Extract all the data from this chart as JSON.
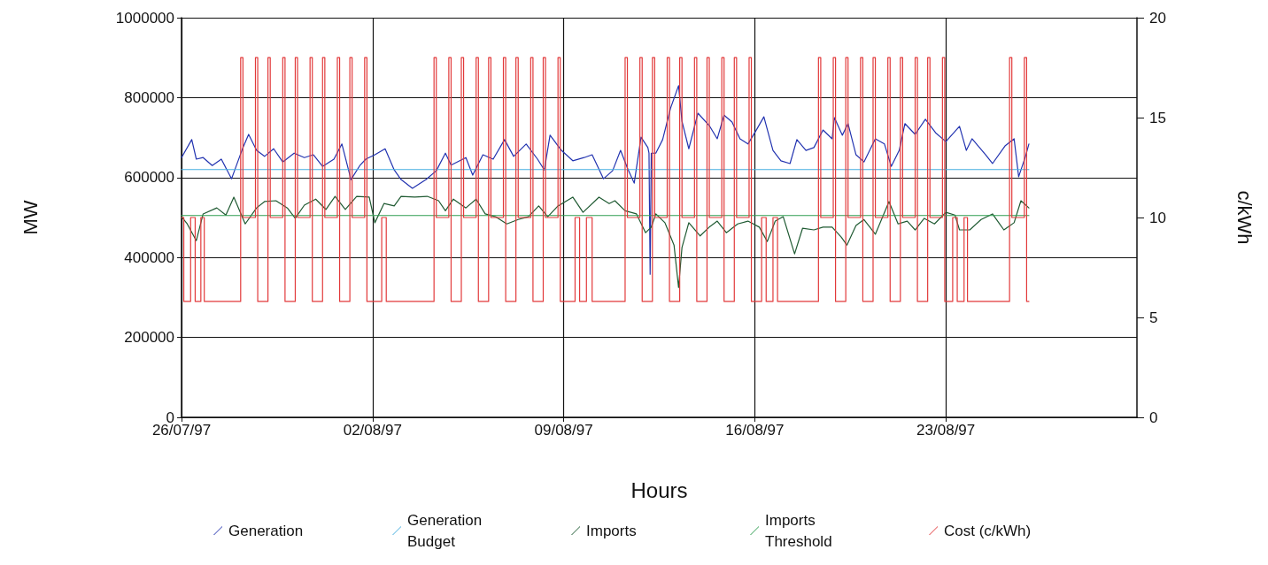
{
  "chart_data": {
    "type": "line",
    "xlabel": "Hours",
    "ylabel": "MW",
    "y2label": "c/kWh",
    "xlim": [
      "1997-07-26",
      "1997-08-30"
    ],
    "xticks": [
      {
        "value": "1997-07-26",
        "label": "26/07/97"
      },
      {
        "value": "1997-08-02",
        "label": "02/08/97"
      },
      {
        "value": "1997-08-09",
        "label": "09/08/97"
      },
      {
        "value": "1997-08-16",
        "label": "16/08/97"
      },
      {
        "value": "1997-08-23",
        "label": "23/08/97"
      }
    ],
    "ylim": [
      0,
      1000000
    ],
    "yticks": [
      0,
      200000,
      400000,
      600000,
      800000,
      1000000
    ],
    "y2lim": [
      0,
      20
    ],
    "y2ticks": [
      0,
      5,
      10,
      15,
      20
    ],
    "grid": true,
    "legend": "bottom",
    "marker": "none",
    "series": [
      {
        "name": "Generation",
        "color": "#2233b0",
        "x": [
          "1997-07-26T00:00",
          "1997-07-26T09:00",
          "1997-07-26T13:00",
          "1997-07-26T19:00",
          "1997-07-27T03:00",
          "1997-07-27T11:00",
          "1997-07-27T20:00",
          "1997-07-28T06:00",
          "1997-07-28T11:00",
          "1997-07-28T18:00",
          "1997-07-29T01:00",
          "1997-07-29T09:00",
          "1997-07-29T17:00",
          "1997-07-30T03:00",
          "1997-07-30T12:00",
          "1997-07-30T20:00",
          "1997-07-31T04:00",
          "1997-07-31T14:00",
          "1997-07-31T21:00",
          "1997-08-01T05:00",
          "1997-08-01T13:00",
          "1997-08-01T18:00",
          "1997-08-02T02:00",
          "1997-08-02T11:00",
          "1997-08-02T19:00",
          "1997-08-03T01:00",
          "1997-08-03T11:00",
          "1997-08-03T23:00",
          "1997-08-04T08:00",
          "1997-08-04T16:00",
          "1997-08-04T21:00",
          "1997-08-05T10:00",
          "1997-08-05T16:00",
          "1997-08-06T01:00",
          "1997-08-06T10:00",
          "1997-08-06T20:00",
          "1997-08-07T04:00",
          "1997-08-07T15:00",
          "1997-08-08T01:00",
          "1997-08-08T07:00",
          "1997-08-08T12:00",
          "1997-08-08T22:00",
          "1997-08-09T08:00",
          "1997-08-09T18:00",
          "1997-08-10T01:00",
          "1997-08-10T11:00",
          "1997-08-10T19:00",
          "1997-08-11T02:00",
          "1997-08-11T08:00",
          "1997-08-11T14:00",
          "1997-08-11T20:00",
          "1997-08-12T02:00",
          "1997-08-12T03:00",
          "1997-08-12T04:00",
          "1997-08-12T05:00",
          "1997-08-12T09:00",
          "1997-08-12T15:00",
          "1997-08-12T22:00",
          "1997-08-13T05:00",
          "1997-08-13T08:00",
          "1997-08-13T14:00",
          "1997-08-13T22:00",
          "1997-08-14T08:00",
          "1997-08-14T15:00",
          "1997-08-14T21:00",
          "1997-08-15T04:00",
          "1997-08-15T11:00",
          "1997-08-15T18:00",
          "1997-08-16T01:00",
          "1997-08-16T08:00",
          "1997-08-16T16:00",
          "1997-08-16T23:00",
          "1997-08-17T07:00",
          "1997-08-17T13:00",
          "1997-08-17T21:00",
          "1997-08-18T04:00",
          "1997-08-18T12:00",
          "1997-08-18T20:00",
          "1997-08-18T22:00",
          "1997-08-19T05:00",
          "1997-08-19T10:00",
          "1997-08-19T17:00",
          "1997-08-20T00:00",
          "1997-08-20T10:00",
          "1997-08-20T18:00",
          "1997-08-21T00:00",
          "1997-08-21T07:00",
          "1997-08-21T12:00",
          "1997-08-21T21:00",
          "1997-08-22T06:00",
          "1997-08-22T15:00",
          "1997-08-23T00:00",
          "1997-08-23T12:00",
          "1997-08-23T18:00",
          "1997-08-23T23:00",
          "1997-08-24T11:00",
          "1997-08-24T17:00",
          "1997-08-25T04:00",
          "1997-08-25T12:00",
          "1997-08-25T16:00",
          "1997-08-25T22:00",
          "1997-08-26T01:00"
        ],
        "values": [
          650000,
          695000,
          646000,
          650000,
          630000,
          646000,
          597000,
          675000,
          708000,
          668000,
          653000,
          672000,
          639000,
          661000,
          650000,
          657000,
          628000,
          646000,
          684000,
          595000,
          631000,
          646000,
          657000,
          672000,
          619000,
          595000,
          573000,
          595000,
          617000,
          661000,
          631000,
          650000,
          606000,
          657000,
          646000,
          695000,
          653000,
          684000,
          646000,
          619000,
          706000,
          668000,
          642000,
          650000,
          657000,
          597000,
          617000,
          668000,
          624000,
          586000,
          701000,
          675000,
          661000,
          358000,
          661000,
          661000,
          695000,
          774000,
          830000,
          741000,
          672000,
          761000,
          730000,
          697000,
          756000,
          739000,
          697000,
          684000,
          717000,
          752000,
          668000,
          642000,
          635000,
          695000,
          668000,
          675000,
          719000,
          697000,
          750000,
          706000,
          735000,
          657000,
          639000,
          697000,
          684000,
          628000,
          668000,
          735000,
          708000,
          746000,
          712000,
          690000,
          728000,
          668000,
          697000,
          657000,
          635000,
          679000,
          697000,
          602000,
          653000,
          684000
        ]
      },
      {
        "name": "Generation Budget",
        "color": "#45aee0",
        "x": [
          "1997-07-26T00:00",
          "1997-08-26T01:00"
        ],
        "values": [
          620000,
          620000
        ]
      },
      {
        "name": "Imports",
        "color": "#1f5a32",
        "x": [
          "1997-07-26T00:00",
          "1997-07-26T05:00",
          "1997-07-26T13:00",
          "1997-07-26T19:00",
          "1997-07-27T07:00",
          "1997-07-27T15:00",
          "1997-07-27T22:00",
          "1997-07-28T08:00",
          "1997-07-28T18:00",
          "1997-07-29T01:00",
          "1997-07-29T11:00",
          "1997-07-29T21:00",
          "1997-07-30T04:00",
          "1997-07-30T12:00",
          "1997-07-30T22:00",
          "1997-07-31T07:00",
          "1997-07-31T15:00",
          "1997-08-01T00:00",
          "1997-08-01T10:00",
          "1997-08-01T21:00",
          "1997-08-02T02:00",
          "1997-08-02T10:00",
          "1997-08-02T19:00",
          "1997-08-03T01:00",
          "1997-08-03T13:00",
          "1997-08-04T00:00",
          "1997-08-04T10:00",
          "1997-08-04T16:00",
          "1997-08-04T23:00",
          "1997-08-05T10:00",
          "1997-08-05T19:00",
          "1997-08-06T03:00",
          "1997-08-06T12:00",
          "1997-08-06T22:00",
          "1997-08-07T08:00",
          "1997-08-07T17:00",
          "1997-08-08T02:00",
          "1997-08-08T10:00",
          "1997-08-08T19:00",
          "1997-08-09T08:00",
          "1997-08-09T17:00",
          "1997-08-10T07:00",
          "1997-08-10T16:00",
          "1997-08-10T21:00",
          "1997-08-11T06:00",
          "1997-08-11T16:00",
          "1997-08-12T00:00",
          "1997-08-12T05:00",
          "1997-08-12T09:00",
          "1997-08-12T17:00",
          "1997-08-13T01:00",
          "1997-08-13T05:00",
          "1997-08-13T08:00",
          "1997-08-13T14:00",
          "1997-08-14T00:00",
          "1997-08-14T08:00",
          "1997-08-14T15:00",
          "1997-08-14T23:00",
          "1997-08-15T09:00",
          "1997-08-15T18:00",
          "1997-08-16T04:00",
          "1997-08-16T11:00",
          "1997-08-16T18:00",
          "1997-08-17T01:00",
          "1997-08-17T11:00",
          "1997-08-17T18:00",
          "1997-08-18T04:00",
          "1997-08-18T12:00",
          "1997-08-18T20:00",
          "1997-08-19T04:00",
          "1997-08-19T09:00",
          "1997-08-19T17:00",
          "1997-08-20T00:00",
          "1997-08-20T10:00",
          "1997-08-20T22:00",
          "1997-08-21T06:00",
          "1997-08-21T14:00",
          "1997-08-21T21:00",
          "1997-08-22T05:00",
          "1997-08-22T14:00",
          "1997-08-23T00:00",
          "1997-08-23T08:00",
          "1997-08-23T12:00",
          "1997-08-23T21:00",
          "1997-08-24T07:00",
          "1997-08-24T17:00",
          "1997-08-25T03:00",
          "1997-08-25T12:00",
          "1997-08-25T18:00",
          "1997-08-26T01:00"
        ],
        "values": [
          502000,
          484000,
          442000,
          509000,
          524000,
          506000,
          551000,
          484000,
          524000,
          540000,
          542000,
          524000,
          498000,
          531000,
          546000,
          520000,
          553000,
          520000,
          553000,
          551000,
          487000,
          535000,
          529000,
          553000,
          551000,
          553000,
          542000,
          517000,
          546000,
          524000,
          546000,
          509000,
          502000,
          484000,
          495000,
          502000,
          529000,
          502000,
          529000,
          551000,
          513000,
          551000,
          535000,
          542000,
          517000,
          509000,
          462000,
          476000,
          509000,
          487000,
          431000,
          325000,
          425000,
          487000,
          454000,
          476000,
          491000,
          462000,
          484000,
          491000,
          476000,
          440000,
          491000,
          502000,
          409000,
          473000,
          469000,
          476000,
          476000,
          451000,
          431000,
          480000,
          495000,
          458000,
          540000,
          484000,
          491000,
          469000,
          498000,
          484000,
          513000,
          506000,
          469000,
          469000,
          495000,
          509000,
          469000,
          487000,
          542000,
          524000
        ]
      },
      {
        "name": "Imports Threshold",
        "color": "#2f9e50",
        "x": [
          "1997-07-26T00:00",
          "1997-08-26T01:00"
        ],
        "values": [
          505000,
          505000
        ]
      },
      {
        "name": "Cost (c/kWh)",
        "type": "step",
        "axis": "y2",
        "color": "#e2393a",
        "x": [
          "1997-07-26T00:00",
          "1997-07-26T02:00",
          "1997-07-26T08:00",
          "1997-07-26T12:00",
          "1997-07-26T17:00",
          "1997-07-26T20:00",
          "1997-07-28T04:00",
          "1997-07-28T06:00",
          "1997-07-28T17:00",
          "1997-07-28T19:00",
          "1997-07-29T04:00",
          "1997-07-29T06:00",
          "1997-07-29T17:00",
          "1997-07-29T19:00",
          "1997-07-30T04:00",
          "1997-07-30T06:00",
          "1997-07-30T17:00",
          "1997-07-30T19:00",
          "1997-07-31T04:00",
          "1997-07-31T06:00",
          "1997-07-31T17:00",
          "1997-07-31T19:00",
          "1997-08-01T04:00",
          "1997-08-01T06:00",
          "1997-08-01T17:00",
          "1997-08-01T19:00",
          "1997-08-02T08:00",
          "1997-08-02T12:00",
          "1997-08-04T06:00",
          "1997-08-04T08:00",
          "1997-08-04T19:00",
          "1997-08-04T21:00",
          "1997-08-05T06:00",
          "1997-08-05T08:00",
          "1997-08-05T19:00",
          "1997-08-05T21:00",
          "1997-08-06T06:00",
          "1997-08-06T08:00",
          "1997-08-06T19:00",
          "1997-08-06T21:00",
          "1997-08-07T06:00",
          "1997-08-07T08:00",
          "1997-08-07T19:00",
          "1997-08-07T21:00",
          "1997-08-08T06:00",
          "1997-08-08T08:00",
          "1997-08-08T19:00",
          "1997-08-08T21:00",
          "1997-08-09T10:00",
          "1997-08-09T14:00",
          "1997-08-09T20:00",
          "1997-08-10T01:00",
          "1997-08-11T06:00",
          "1997-08-11T08:00",
          "1997-08-11T19:00",
          "1997-08-11T21:00",
          "1997-08-12T06:00",
          "1997-08-12T08:00",
          "1997-08-12T19:00",
          "1997-08-12T21:00",
          "1997-08-13T06:00",
          "1997-08-13T08:00",
          "1997-08-13T19:00",
          "1997-08-13T21:00",
          "1997-08-14T06:00",
          "1997-08-14T08:00",
          "1997-08-14T19:00",
          "1997-08-14T21:00",
          "1997-08-15T06:00",
          "1997-08-15T08:00",
          "1997-08-15T19:00",
          "1997-08-15T21:00",
          "1997-08-16T06:00",
          "1997-08-16T10:00",
          "1997-08-16T16:00",
          "1997-08-16T20:00",
          "1997-08-18T08:00",
          "1997-08-18T10:00",
          "1997-08-18T21:00",
          "1997-08-18T23:00",
          "1997-08-19T08:00",
          "1997-08-19T10:00",
          "1997-08-19T21:00",
          "1997-08-19T23:00",
          "1997-08-20T08:00",
          "1997-08-20T10:00",
          "1997-08-20T21:00",
          "1997-08-20T23:00",
          "1997-08-21T08:00",
          "1997-08-21T10:00",
          "1997-08-21T21:00",
          "1997-08-21T23:00",
          "1997-08-22T08:00",
          "1997-08-22T10:00",
          "1997-08-22T21:00",
          "1997-08-22T23:00",
          "1997-08-23T06:00",
          "1997-08-23T10:00",
          "1997-08-23T16:00",
          "1997-08-23T19:00",
          "1997-08-25T08:00",
          "1997-08-25T10:00",
          "1997-08-25T21:00",
          "1997-08-25T23:00",
          "1997-08-26T01:00"
        ],
        "values": [
          10,
          5.8,
          10,
          5.8,
          10,
          5.8,
          18,
          10,
          18,
          5.8,
          18,
          10,
          18,
          5.8,
          18,
          10,
          18,
          5.8,
          18,
          10,
          18,
          5.8,
          18,
          10,
          18,
          5.8,
          10,
          5.8,
          18,
          10,
          18,
          5.8,
          18,
          10,
          18,
          5.8,
          18,
          10,
          18,
          5.8,
          18,
          10,
          18,
          5.8,
          18,
          10,
          18,
          5.8,
          10,
          5.8,
          10,
          5.8,
          18,
          10,
          18,
          5.8,
          18,
          10,
          18,
          5.8,
          18,
          10,
          18,
          5.8,
          18,
          10,
          18,
          5.8,
          18,
          10,
          18,
          5.8,
          10,
          5.8,
          10,
          5.8,
          18,
          10,
          18,
          5.8,
          18,
          10,
          18,
          5.8,
          18,
          10,
          18,
          5.8,
          18,
          10,
          18,
          5.8,
          18,
          10,
          18,
          5.8,
          10,
          5.8,
          10,
          5.8,
          18,
          10,
          18,
          5.8,
          5.8
        ]
      }
    ]
  }
}
